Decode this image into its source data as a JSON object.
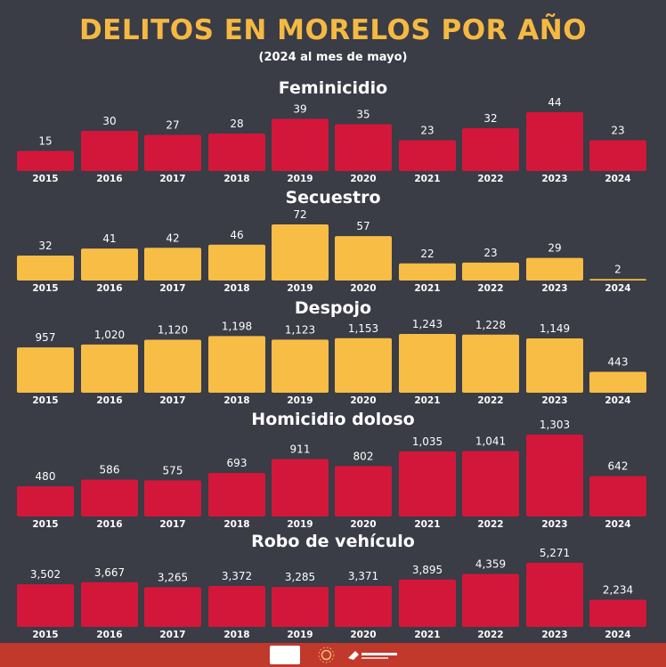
{
  "header": {
    "title": "DELITOS EN MORELOS POR AÑO",
    "subtitle": "(2024 al mes de mayo)"
  },
  "colors": {
    "red": "#d3173a",
    "yellow": "#f7bd45",
    "background": "#3a3c46",
    "footer": "#c0392b"
  },
  "chart_data": [
    {
      "type": "bar",
      "title": "Feminicidio",
      "color": "#d3173a",
      "categories": [
        "2015",
        "2016",
        "2017",
        "2018",
        "2019",
        "2020",
        "2021",
        "2022",
        "2023",
        "2024"
      ],
      "values": [
        15,
        30,
        27,
        28,
        39,
        35,
        23,
        32,
        44,
        23
      ],
      "labels": [
        "15",
        "30",
        "27",
        "28",
        "39",
        "35",
        "23",
        "32",
        "44",
        "23"
      ]
    },
    {
      "type": "bar",
      "title": "Secuestro",
      "color": "#f7bd45",
      "categories": [
        "2015",
        "2016",
        "2017",
        "2018",
        "2019",
        "2020",
        "2021",
        "2022",
        "2023",
        "2024"
      ],
      "values": [
        32,
        41,
        42,
        46,
        72,
        57,
        22,
        23,
        29,
        2
      ],
      "labels": [
        "32",
        "41",
        "42",
        "46",
        "72",
        "57",
        "22",
        "23",
        "29",
        "2"
      ]
    },
    {
      "type": "bar",
      "title": "Despojo",
      "color": "#f7bd45",
      "categories": [
        "2015",
        "2016",
        "2017",
        "2018",
        "2019",
        "2020",
        "2021",
        "2022",
        "2023",
        "2024"
      ],
      "values": [
        957,
        1020,
        1120,
        1198,
        1123,
        1153,
        1243,
        1228,
        1149,
        443
      ],
      "labels": [
        "957",
        "1,020",
        "1,120",
        "1,198",
        "1,123",
        "1,153",
        "1,243",
        "1,228",
        "1,149",
        "443"
      ]
    },
    {
      "type": "bar",
      "title": "Homicidio doloso",
      "color": "#d3173a",
      "categories": [
        "2015",
        "2016",
        "2017",
        "2018",
        "2019",
        "2020",
        "2021",
        "2022",
        "2023",
        "2024"
      ],
      "values": [
        480,
        586,
        575,
        693,
        911,
        802,
        1035,
        1041,
        1303,
        642
      ],
      "labels": [
        "480",
        "586",
        "575",
        "693",
        "911",
        "802",
        "1,035",
        "1,041",
        "1,303",
        "642"
      ]
    },
    {
      "type": "bar",
      "title": "Robo de vehículo",
      "color": "#d3173a",
      "categories": [
        "2015",
        "2016",
        "2017",
        "2018",
        "2019",
        "2020",
        "2021",
        "2022",
        "2023",
        "2024"
      ],
      "values": [
        3502,
        3667,
        3265,
        3372,
        3285,
        3371,
        3895,
        4359,
        5271,
        2234
      ],
      "labels": [
        "3,502",
        "3,667",
        "3,265",
        "3,372",
        "3,285",
        "3,371",
        "3,895",
        "4,359",
        "5,271",
        "2,234"
      ]
    }
  ]
}
